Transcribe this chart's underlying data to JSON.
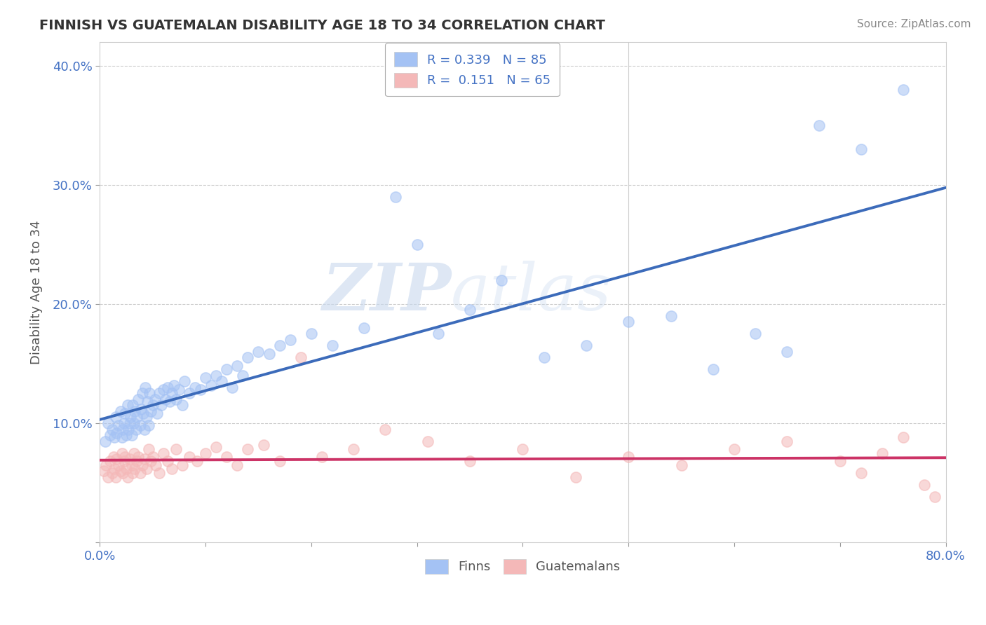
{
  "title": "FINNISH VS GUATEMALAN DISABILITY AGE 18 TO 34 CORRELATION CHART",
  "source_text": "Source: ZipAtlas.com",
  "ylabel": "Disability Age 18 to 34",
  "xlim": [
    0.0,
    0.8
  ],
  "ylim": [
    0.0,
    0.42
  ],
  "xticks": [
    0.0,
    0.1,
    0.2,
    0.3,
    0.4,
    0.5,
    0.6,
    0.7,
    0.8
  ],
  "xticklabels": [
    "0.0%",
    "",
    "",
    "",
    "",
    "",
    "",
    "",
    "80.0%"
  ],
  "yticks": [
    0.0,
    0.1,
    0.2,
    0.3,
    0.4
  ],
  "yticklabels": [
    "",
    "10.0%",
    "20.0%",
    "30.0%",
    "40.0%"
  ],
  "finn_color": "#a4c2f4",
  "guatemalan_color": "#f4b8b8",
  "finn_line_color": "#3c6bba",
  "guatemalan_line_color": "#cc3366",
  "legend_R_finn": "R = 0.339",
  "legend_N_finn": "N = 85",
  "legend_R_guat": "R =  0.151",
  "legend_N_guat": "N = 65",
  "watermark_zip": "ZIP",
  "watermark_atlas": "atlas",
  "background_color": "#ffffff",
  "grid_color": "#cccccc",
  "finn_scatter_x": [
    0.005,
    0.008,
    0.01,
    0.012,
    0.014,
    0.015,
    0.016,
    0.018,
    0.02,
    0.021,
    0.022,
    0.023,
    0.024,
    0.025,
    0.026,
    0.027,
    0.028,
    0.029,
    0.03,
    0.031,
    0.032,
    0.033,
    0.034,
    0.035,
    0.036,
    0.038,
    0.039,
    0.04,
    0.041,
    0.042,
    0.043,
    0.044,
    0.045,
    0.046,
    0.047,
    0.048,
    0.05,
    0.052,
    0.054,
    0.056,
    0.058,
    0.06,
    0.062,
    0.064,
    0.066,
    0.068,
    0.07,
    0.072,
    0.075,
    0.078,
    0.08,
    0.085,
    0.09,
    0.095,
    0.1,
    0.105,
    0.11,
    0.115,
    0.12,
    0.125,
    0.13,
    0.135,
    0.14,
    0.15,
    0.16,
    0.17,
    0.18,
    0.2,
    0.22,
    0.25,
    0.28,
    0.3,
    0.32,
    0.35,
    0.38,
    0.42,
    0.46,
    0.5,
    0.54,
    0.58,
    0.62,
    0.65,
    0.68,
    0.72,
    0.76
  ],
  "finn_scatter_y": [
    0.085,
    0.1,
    0.09,
    0.095,
    0.088,
    0.105,
    0.092,
    0.098,
    0.11,
    0.088,
    0.095,
    0.1,
    0.108,
    0.09,
    0.115,
    0.095,
    0.1,
    0.105,
    0.09,
    0.115,
    0.1,
    0.11,
    0.095,
    0.105,
    0.12,
    0.098,
    0.112,
    0.125,
    0.108,
    0.095,
    0.13,
    0.105,
    0.118,
    0.098,
    0.125,
    0.11,
    0.115,
    0.12,
    0.108,
    0.125,
    0.115,
    0.128,
    0.12,
    0.13,
    0.118,
    0.125,
    0.132,
    0.12,
    0.128,
    0.115,
    0.135,
    0.125,
    0.13,
    0.128,
    0.138,
    0.132,
    0.14,
    0.135,
    0.145,
    0.13,
    0.148,
    0.14,
    0.155,
    0.16,
    0.158,
    0.165,
    0.17,
    0.175,
    0.165,
    0.18,
    0.29,
    0.25,
    0.175,
    0.195,
    0.22,
    0.155,
    0.165,
    0.185,
    0.19,
    0.145,
    0.175,
    0.16,
    0.35,
    0.33,
    0.38
  ],
  "guat_scatter_x": [
    0.004,
    0.006,
    0.008,
    0.01,
    0.012,
    0.013,
    0.014,
    0.015,
    0.016,
    0.018,
    0.02,
    0.021,
    0.022,
    0.023,
    0.024,
    0.025,
    0.026,
    0.028,
    0.03,
    0.031,
    0.032,
    0.033,
    0.035,
    0.036,
    0.038,
    0.04,
    0.042,
    0.044,
    0.046,
    0.048,
    0.05,
    0.053,
    0.056,
    0.06,
    0.064,
    0.068,
    0.072,
    0.078,
    0.085,
    0.092,
    0.1,
    0.11,
    0.12,
    0.13,
    0.14,
    0.155,
    0.17,
    0.19,
    0.21,
    0.24,
    0.27,
    0.31,
    0.35,
    0.4,
    0.45,
    0.5,
    0.55,
    0.6,
    0.65,
    0.7,
    0.72,
    0.74,
    0.76,
    0.78,
    0.79
  ],
  "guat_scatter_y": [
    0.06,
    0.065,
    0.055,
    0.068,
    0.058,
    0.072,
    0.062,
    0.055,
    0.07,
    0.065,
    0.06,
    0.075,
    0.058,
    0.068,
    0.072,
    0.062,
    0.055,
    0.07,
    0.065,
    0.058,
    0.075,
    0.062,
    0.068,
    0.072,
    0.058,
    0.065,
    0.07,
    0.062,
    0.078,
    0.068,
    0.072,
    0.065,
    0.058,
    0.075,
    0.068,
    0.062,
    0.078,
    0.065,
    0.072,
    0.068,
    0.075,
    0.08,
    0.072,
    0.065,
    0.078,
    0.082,
    0.068,
    0.155,
    0.072,
    0.078,
    0.095,
    0.085,
    0.068,
    0.078,
    0.055,
    0.072,
    0.065,
    0.078,
    0.085,
    0.068,
    0.058,
    0.075,
    0.088,
    0.048,
    0.038
  ]
}
